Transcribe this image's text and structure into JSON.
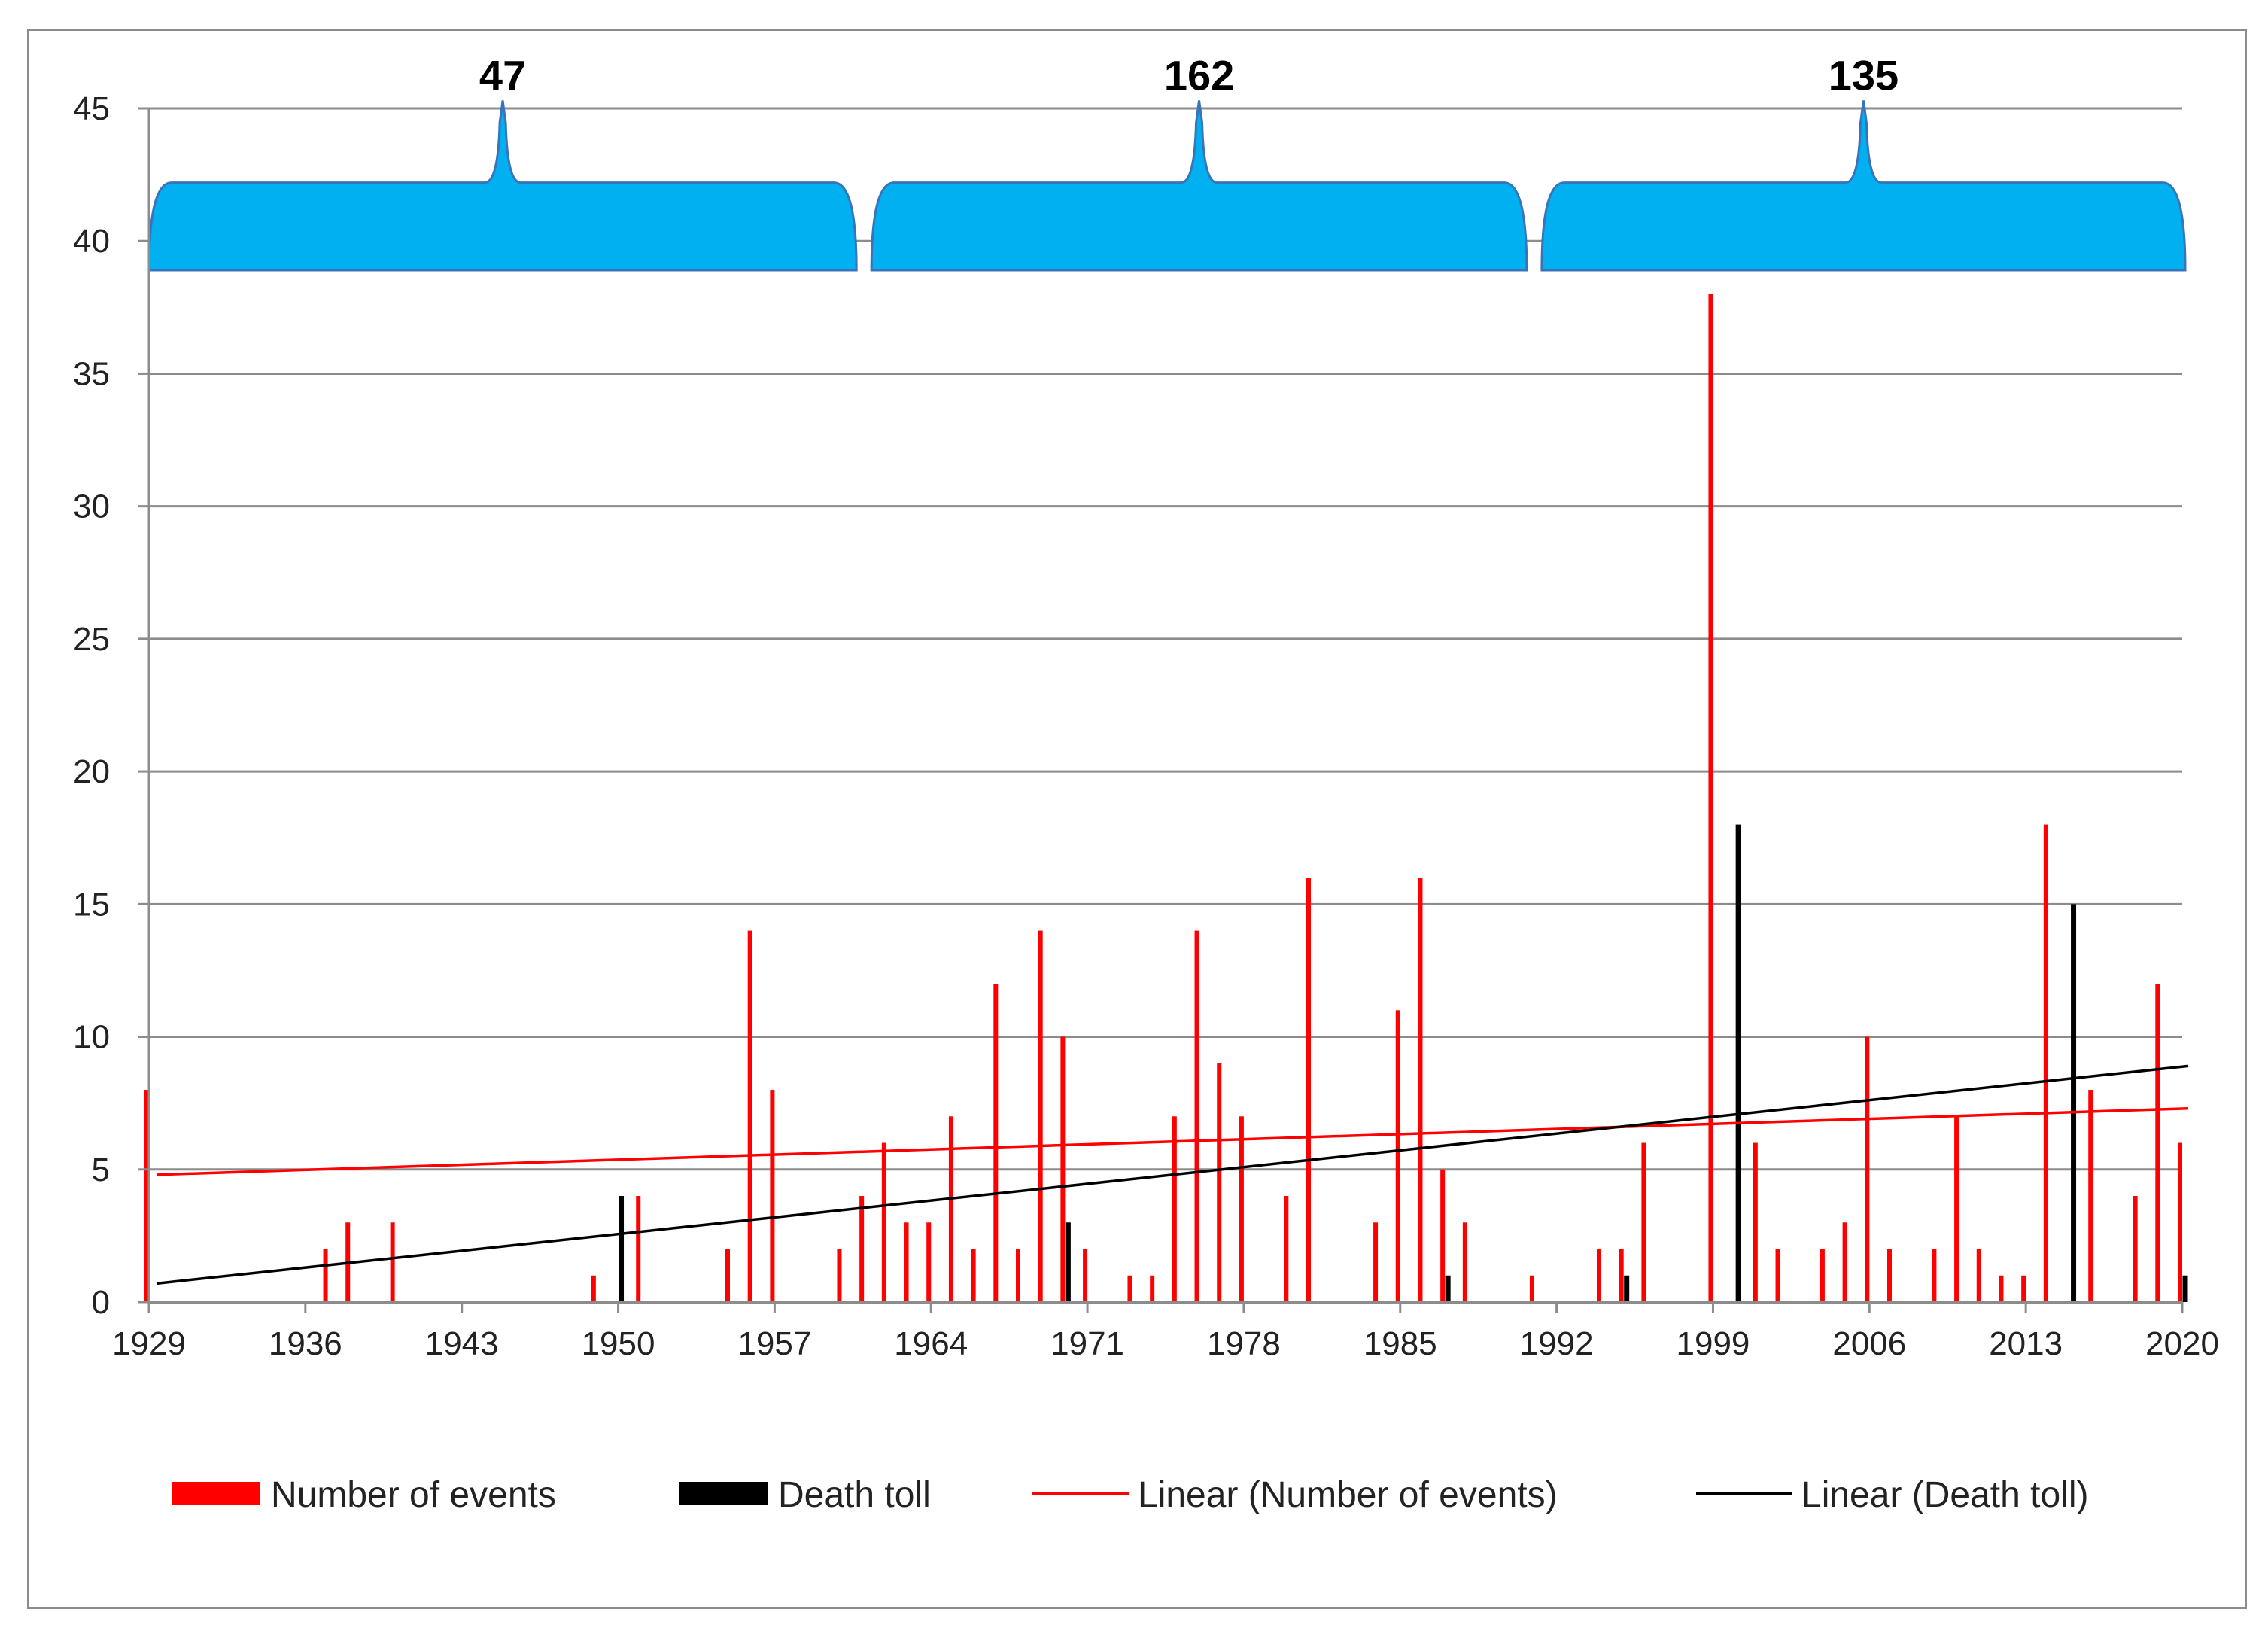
{
  "chart_data": {
    "type": "bar",
    "title": "",
    "xlabel": "",
    "ylabel": "",
    "xlim": [
      1929,
      2020
    ],
    "ylim": [
      0,
      45
    ],
    "yticks": [
      "0",
      "5",
      "10",
      "15",
      "20",
      "25",
      "30",
      "35",
      "40",
      "45"
    ],
    "xticks": [
      "1929",
      "1936",
      "1943",
      "1950",
      "1957",
      "1964",
      "1971",
      "1978",
      "1985",
      "1992",
      "1999",
      "2006",
      "2013",
      "2020"
    ],
    "grid": true,
    "legend_position": "bottom",
    "series": [
      {
        "name": "Number of events",
        "color": "#ff0000",
        "points": [
          {
            "year": 1929,
            "value": 8
          },
          {
            "year": 1937,
            "value": 2
          },
          {
            "year": 1938,
            "value": 3
          },
          {
            "year": 1940,
            "value": 3
          },
          {
            "year": 1949,
            "value": 1
          },
          {
            "year": 1951,
            "value": 4
          },
          {
            "year": 1955,
            "value": 2
          },
          {
            "year": 1956,
            "value": 14
          },
          {
            "year": 1957,
            "value": 8
          },
          {
            "year": 1960,
            "value": 2
          },
          {
            "year": 1961,
            "value": 4
          },
          {
            "year": 1962,
            "value": 6
          },
          {
            "year": 1963,
            "value": 3
          },
          {
            "year": 1964,
            "value": 3
          },
          {
            "year": 1965,
            "value": 7
          },
          {
            "year": 1966,
            "value": 2
          },
          {
            "year": 1967,
            "value": 12
          },
          {
            "year": 1968,
            "value": 2
          },
          {
            "year": 1969,
            "value": 14
          },
          {
            "year": 1970,
            "value": 10
          },
          {
            "year": 1971,
            "value": 2
          },
          {
            "year": 1973,
            "value": 1
          },
          {
            "year": 1974,
            "value": 1
          },
          {
            "year": 1975,
            "value": 7
          },
          {
            "year": 1976,
            "value": 14
          },
          {
            "year": 1977,
            "value": 9
          },
          {
            "year": 1978,
            "value": 7
          },
          {
            "year": 1980,
            "value": 4
          },
          {
            "year": 1981,
            "value": 16
          },
          {
            "year": 1984,
            "value": 3
          },
          {
            "year": 1985,
            "value": 11
          },
          {
            "year": 1986,
            "value": 16
          },
          {
            "year": 1987,
            "value": 5
          },
          {
            "year": 1988,
            "value": 3
          },
          {
            "year": 1991,
            "value": 1
          },
          {
            "year": 1994,
            "value": 2
          },
          {
            "year": 1995,
            "value": 2
          },
          {
            "year": 1996,
            "value": 6
          },
          {
            "year": 1999,
            "value": 38
          },
          {
            "year": 2001,
            "value": 6
          },
          {
            "year": 2002,
            "value": 2
          },
          {
            "year": 2004,
            "value": 2
          },
          {
            "year": 2005,
            "value": 3
          },
          {
            "year": 2006,
            "value": 10
          },
          {
            "year": 2007,
            "value": 2
          },
          {
            "year": 2009,
            "value": 2
          },
          {
            "year": 2010,
            "value": 7
          },
          {
            "year": 2011,
            "value": 2
          },
          {
            "year": 2012,
            "value": 1
          },
          {
            "year": 2013,
            "value": 1
          },
          {
            "year": 2014,
            "value": 18
          },
          {
            "year": 2016,
            "value": 8
          },
          {
            "year": 2018,
            "value": 4
          },
          {
            "year": 2019,
            "value": 12
          },
          {
            "year": 2020,
            "value": 6
          }
        ]
      },
      {
        "name": "Death toll",
        "color": "#000000",
        "points": [
          {
            "year": 1950,
            "value": 4
          },
          {
            "year": 1970,
            "value": 3
          },
          {
            "year": 1987,
            "value": 1
          },
          {
            "year": 1995,
            "value": 1
          },
          {
            "year": 2000,
            "value": 18
          },
          {
            "year": 2015,
            "value": 15
          },
          {
            "year": 2020,
            "value": 1
          }
        ]
      }
    ],
    "trendlines": [
      {
        "name": "Linear (Number of events)",
        "color": "#ff0000",
        "x": [
          1929,
          2020
        ],
        "y": [
          4.8,
          7.3
        ]
      },
      {
        "name": "Linear (Death toll)",
        "color": "#000000",
        "x": [
          1929,
          2020
        ],
        "y": [
          0.7,
          8.9
        ]
      }
    ],
    "annotations": [
      {
        "label": "47",
        "from_year": 1929,
        "to_year": 1961,
        "color": "#00b0f0"
      },
      {
        "label": "162",
        "from_year": 1961,
        "to_year": 1991,
        "color": "#00b0f0"
      },
      {
        "label": "135",
        "from_year": 1991,
        "to_year": 2020,
        "color": "#00b0f0"
      }
    ],
    "legend": [
      {
        "label": "Number of events",
        "kind": "bar",
        "color": "#ff0000"
      },
      {
        "label": "Death toll",
        "kind": "bar",
        "color": "#000000"
      },
      {
        "label": "Linear (Number of events)",
        "kind": "line",
        "color": "#ff0000"
      },
      {
        "label": "Linear (Death toll)",
        "kind": "line",
        "color": "#000000"
      }
    ]
  }
}
